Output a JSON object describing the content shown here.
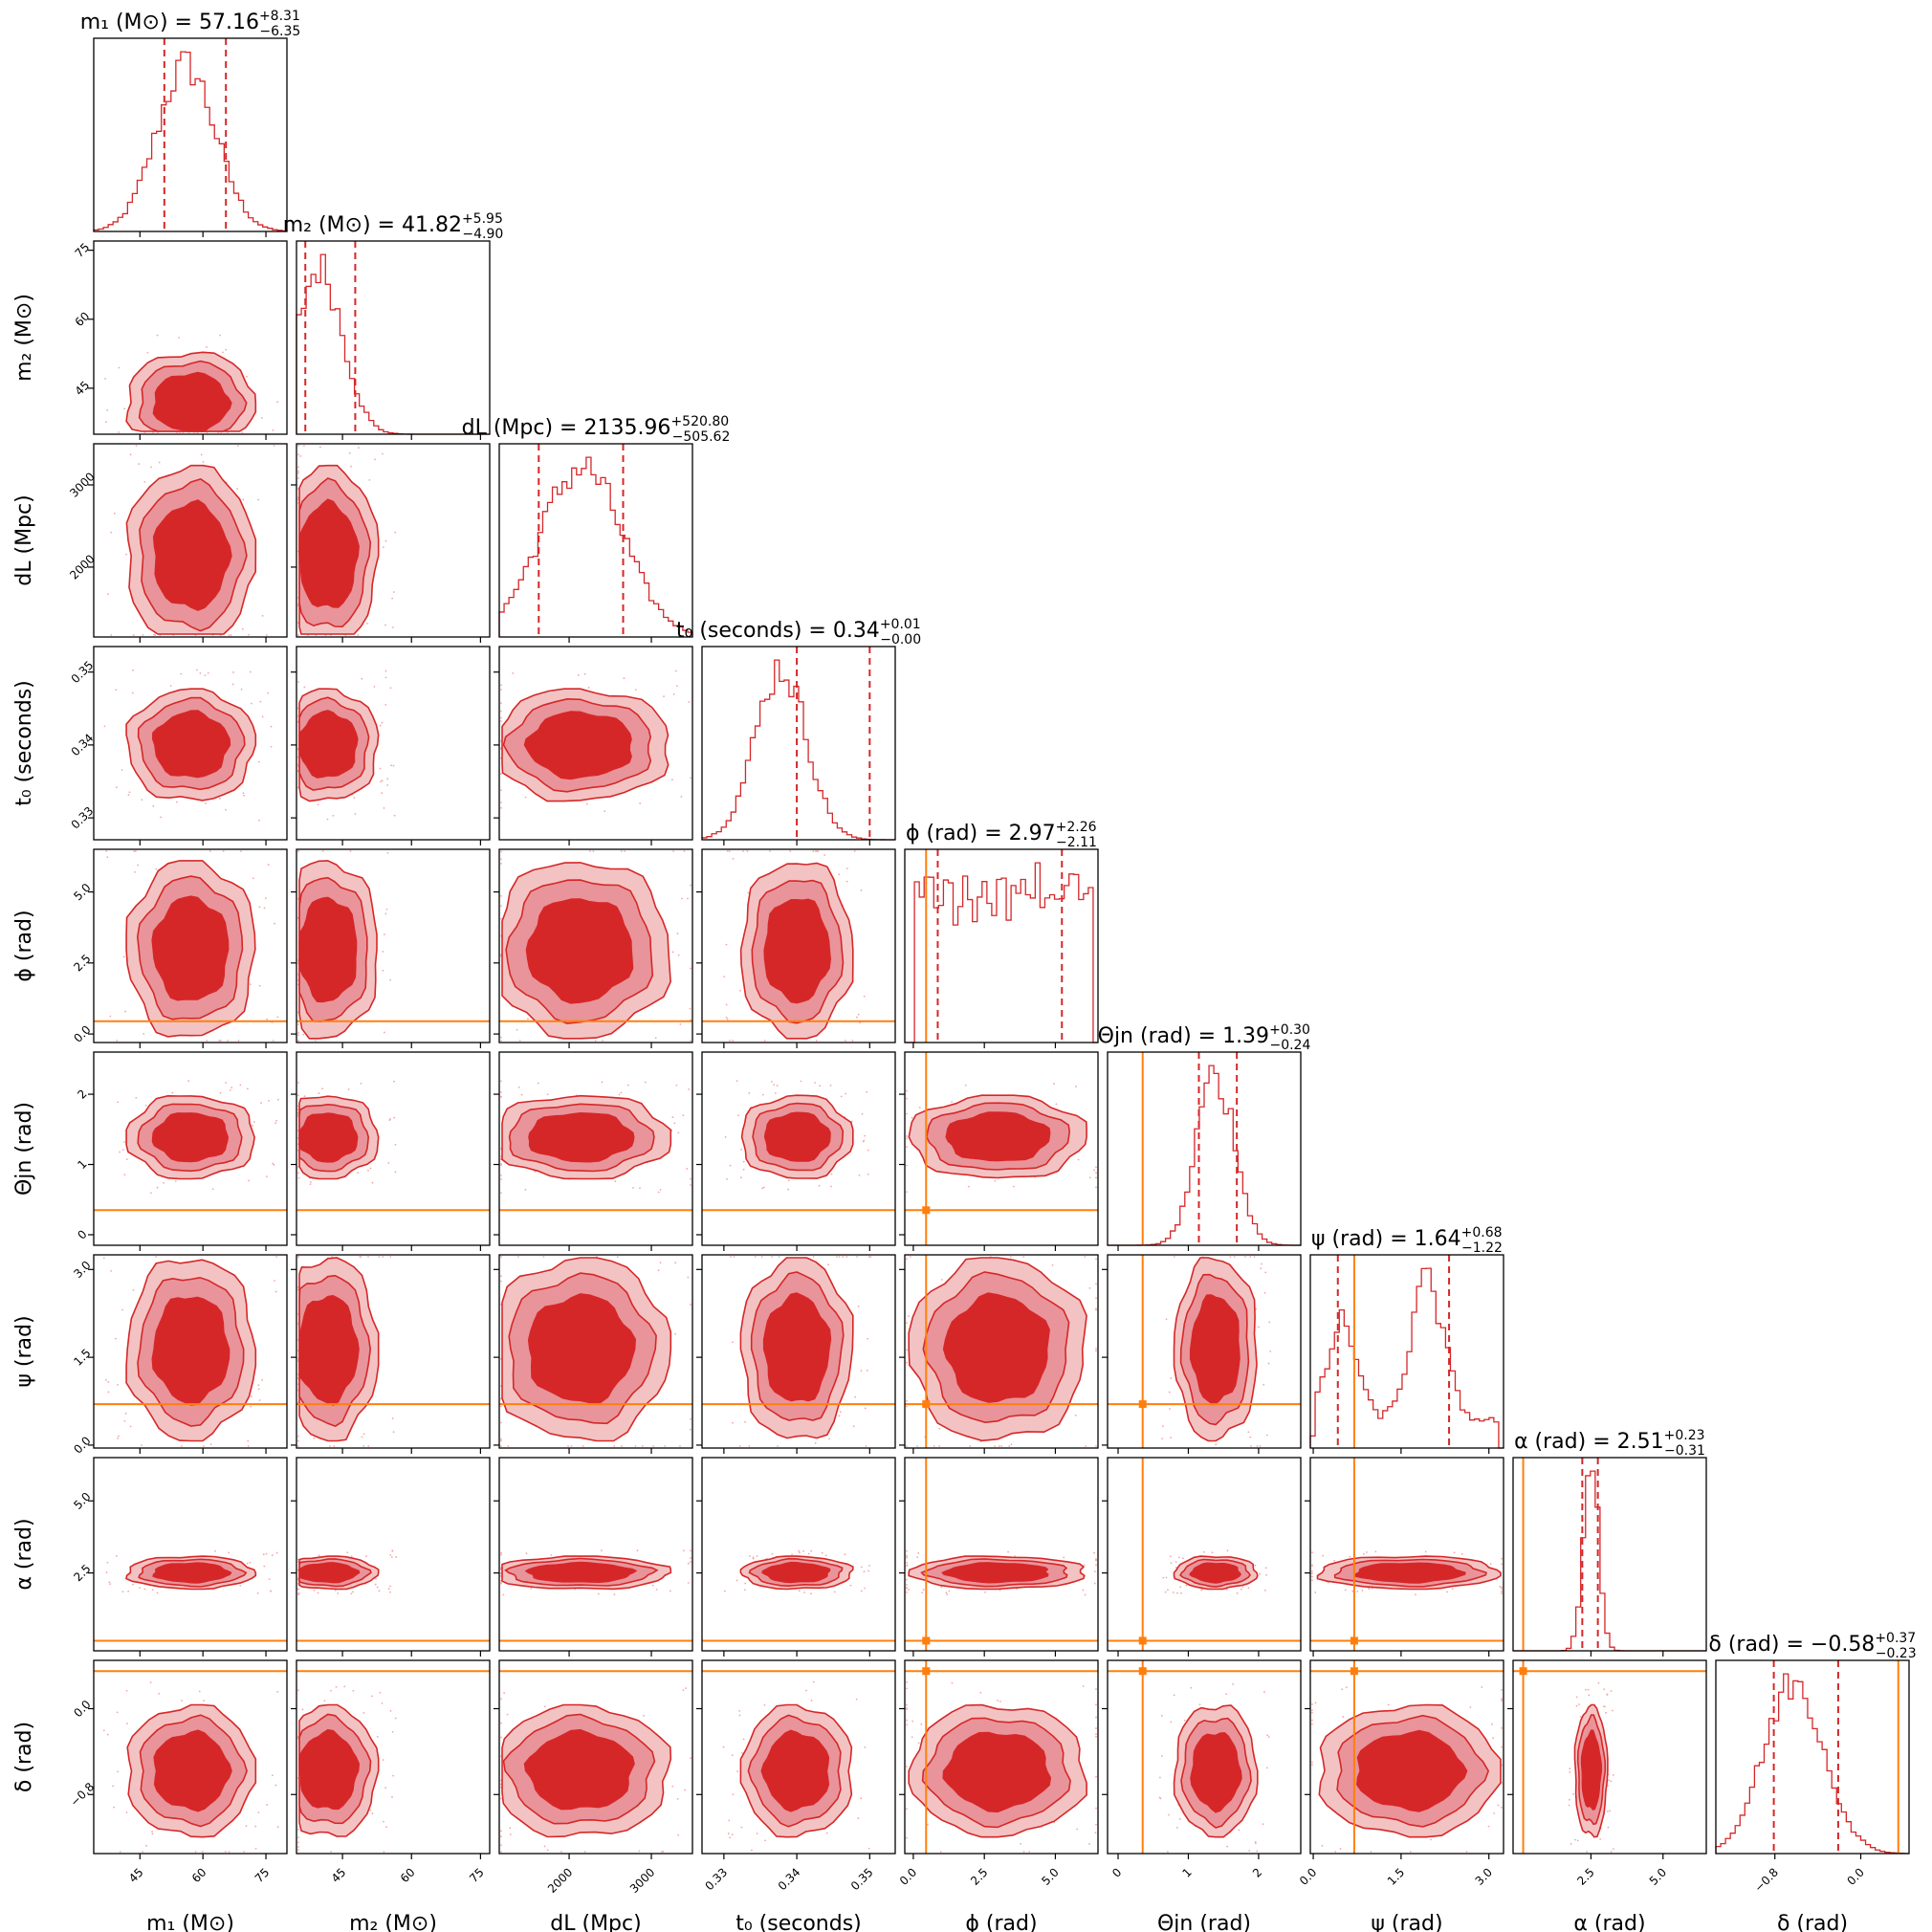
{
  "chart_data": {
    "type": "corner",
    "colors": {
      "posterior": "#d62728",
      "injection": "#ff7f0e"
    },
    "quantiles": [
      0.16,
      0.84
    ],
    "params": [
      {
        "key": "m1",
        "label": "m₁ (M⊙)",
        "title": "m₁ (M⊙) = 57.16",
        "median": 57.16,
        "err_plus": "+8.31",
        "err_minus": "−6.35",
        "range": [
          34,
          80
        ],
        "ticks": [
          45,
          60,
          75
        ],
        "tick_labels": [
          "45",
          "60",
          "75"
        ],
        "mean": 56,
        "sd": 7,
        "truth": null
      },
      {
        "key": "m2",
        "label": "m₂ (M⊙)",
        "title": "m₂ (M⊙) = 41.82",
        "median": 41.82,
        "err_plus": "+5.95",
        "err_minus": "−4.90",
        "range": [
          35,
          77
        ],
        "ticks": [
          45,
          60,
          75
        ],
        "tick_labels": [
          "45",
          "60",
          "75"
        ],
        "mean": 40,
        "sd": 5,
        "truth": null
      },
      {
        "key": "dL",
        "label": "dL (Mpc)",
        "title": "dL (Mpc) = 2135.96",
        "median": 2135.96,
        "err_plus": "+520.80",
        "err_minus": "−505.62",
        "range": [
          1150,
          3500
        ],
        "ticks": [
          2000,
          3000
        ],
        "tick_labels": [
          "2000",
          "3000"
        ],
        "mean": 2150,
        "sd": 500,
        "truth": null
      },
      {
        "key": "t0",
        "label": "t₀ (seconds)",
        "title": "t₀ (seconds) = 0.34",
        "median": 0.34,
        "err_plus": "+0.01",
        "err_minus": "−0.00",
        "range": [
          0.327,
          0.3535
        ],
        "ticks": [
          0.33,
          0.34,
          0.35
        ],
        "tick_labels": [
          "0.33",
          "0.34",
          "0.35"
        ],
        "mean": 0.3378,
        "sd": 0.0035,
        "truth": null
      },
      {
        "key": "phi",
        "label": "ϕ (rad)",
        "title": "ϕ (rad) = 2.97",
        "median": 2.97,
        "err_plus": "+2.26",
        "err_minus": "−2.11",
        "range": [
          -0.3,
          6.5
        ],
        "ticks": [
          0.0,
          2.5,
          5.0
        ],
        "tick_labels": [
          "0.0",
          "2.5",
          "5.0"
        ],
        "mean": 3.0,
        "sd": 1.8,
        "truth": 0.45
      },
      {
        "key": "theta",
        "label": "Θjn (rad)",
        "title": "Θjn (rad) = 1.39",
        "median": 1.39,
        "err_plus": "+0.30",
        "err_minus": "−0.24",
        "range": [
          -0.15,
          2.6
        ],
        "ticks": [
          0,
          1,
          2
        ],
        "tick_labels": [
          "0",
          "1",
          "2"
        ],
        "mean": 1.39,
        "sd": 0.27,
        "truth": 0.35
      },
      {
        "key": "psi",
        "label": "ψ (rad)",
        "title": "ψ (rad) = 1.64",
        "median": 1.64,
        "err_plus": "+0.68",
        "err_minus": "−1.22",
        "range": [
          -0.05,
          3.25
        ],
        "ticks": [
          0.0,
          1.5,
          3.0
        ],
        "tick_labels": [
          "0.0",
          "1.5",
          "3.0"
        ],
        "mean": 1.6,
        "sd": 0.9,
        "truth": 0.7
      },
      {
        "key": "alpha",
        "label": "α (rad)",
        "title": "α (rad) = 2.51",
        "median": 2.51,
        "err_plus": "+0.23",
        "err_minus": "−0.31",
        "range": [
          -0.2,
          6.5
        ],
        "ticks": [
          2.5,
          5.0
        ],
        "tick_labels": [
          "2.5",
          "5.0"
        ],
        "mean": 2.5,
        "sd": 0.26,
        "truth": 0.15
      },
      {
        "key": "delta",
        "label": "δ (rad)",
        "title": "δ (rad) = −0.58",
        "median": -0.58,
        "err_plus": "+0.37",
        "err_minus": "−0.23",
        "range": [
          -1.35,
          0.45
        ],
        "ticks": [
          -0.8,
          0.0
        ],
        "tick_labels": [
          "−0.8",
          "0.0"
        ],
        "mean": -0.62,
        "sd": 0.28,
        "truth": 0.35
      }
    ]
  }
}
